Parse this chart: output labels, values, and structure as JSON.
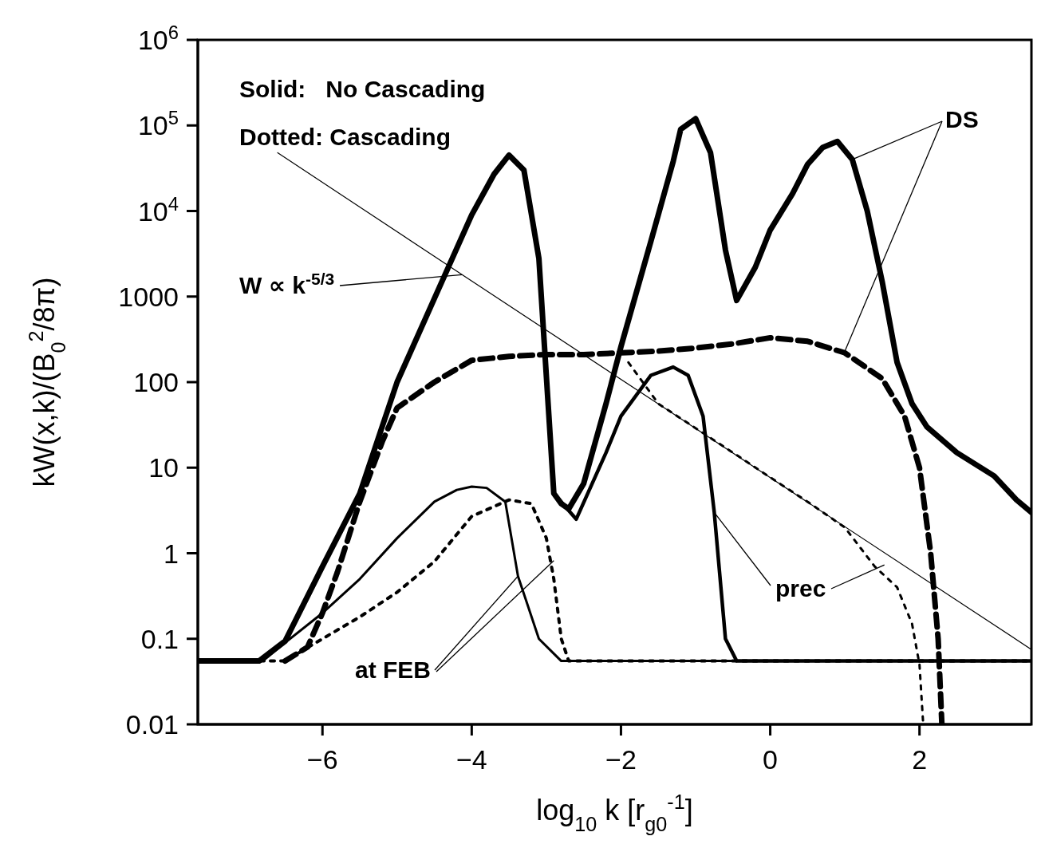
{
  "chart_data": {
    "type": "line",
    "xlabel": "log$_{10}$ k [r$_{g0}$$^{-1}$]",
    "ylabel": "kW(x,k)/(B$_{0}$$^{2}$/8π)",
    "log": "y",
    "xlim": [
      -7.67,
      3.5
    ],
    "xticks": [
      -6,
      -4,
      -2,
      0,
      2
    ],
    "ylim": [
      0.01,
      1000000
    ],
    "yticks": [
      0.01,
      0.1,
      1,
      10,
      100,
      1000,
      {
        "value": 10000,
        "label": "10$^{4}$"
      },
      {
        "value": 100000,
        "label": "10$^{5}$"
      },
      {
        "value": 1000000,
        "label": "10$^{6}$"
      }
    ],
    "series": [
      {
        "color": "#000000",
        "line_style": "solid",
        "x": [
          -7.67,
          -6.85,
          -6.5,
          -6,
          -5.5,
          -5,
          -4.5,
          -4,
          -3.7,
          -3.5,
          -3.3,
          -3.1,
          -2.9,
          -2.8,
          -2.7,
          -2.5,
          -2.2,
          -2,
          -1.6,
          -1.3,
          -1.2,
          -1,
          -0.8,
          -0.6,
          -0.45,
          -0.2,
          0,
          0.3,
          0.5,
          0.7,
          0.9,
          1.1,
          1.3,
          1.5,
          1.7,
          1.9,
          2.1,
          2.5,
          3,
          3.3,
          3.5
        ],
        "values": [
          0.055,
          0.055,
          0.094,
          0.7,
          5,
          100,
          950,
          9000,
          27000,
          45000,
          30000,
          2800,
          5,
          3.8,
          3.3,
          6.5,
          56,
          260,
          4400,
          38000,
          90000,
          120000,
          48000,
          3500,
          900,
          2200,
          6000,
          16000,
          35000,
          55000,
          65000,
          40000,
          10000,
          1500,
          170,
          56,
          30,
          15,
          8,
          4.2,
          3
        ]
      },
      {
        "color": "#000000",
        "line_style": "dashed",
        "x": [
          -6.5,
          -6.2,
          -6,
          -5.8,
          -5.5,
          -5.2,
          -5,
          -4.5,
          -4,
          -3.5,
          -3,
          -2.5,
          -2,
          -1.5,
          -1,
          -0.5,
          0,
          0.5,
          1,
          1.5,
          1.8,
          2,
          2.15,
          2.25,
          2.3
        ],
        "values": [
          0.055,
          0.08,
          0.2,
          0.6,
          4,
          20,
          50,
          100,
          180,
          200,
          210,
          210,
          220,
          230,
          250,
          280,
          330,
          300,
          220,
          110,
          40,
          10,
          1,
          0.1,
          0.01
        ]
      },
      {
        "color": "#000000",
        "line_style": "solid",
        "x": [
          -2.9,
          -2.6,
          -2.2,
          -2,
          -1.6,
          -1.3,
          -1.1,
          -0.9,
          -0.75,
          -0.6,
          -0.45,
          3.5
        ],
        "values": [
          5,
          2.5,
          15,
          40,
          120,
          150,
          120,
          40,
          3,
          0.1,
          0.055,
          0.055
        ]
      },
      {
        "color": "#000000",
        "line_style": "solid",
        "x": [
          -7.67,
          -6.8,
          -6.5,
          -6,
          -5.5,
          -5,
          -4.5,
          -4.2,
          -4,
          -3.8,
          -3.55,
          -3.38,
          -3.1,
          -2.8,
          3.5
        ],
        "values": [
          0.055,
          0.055,
          0.09,
          0.2,
          0.5,
          1.5,
          4,
          5.5,
          6,
          5.8,
          4,
          0.54,
          0.1,
          0.055,
          0.055
        ]
      },
      {
        "color": "#000000",
        "line_style": "dotted",
        "x": [
          -7.67,
          -6.5,
          -6,
          -5.5,
          -5,
          -4.5,
          -4,
          -3.5,
          -3.2,
          -3,
          -2.9,
          -2.8,
          -2.7,
          3.5
        ],
        "values": [
          0.055,
          0.055,
          0.1,
          0.18,
          0.35,
          0.8,
          2.7,
          4.2,
          3.8,
          1.5,
          0.5,
          0.1,
          0.055,
          0.055
        ]
      },
      {
        "color": "#000000",
        "line_style": "dotted",
        "x": [
          -1.9,
          -1.5,
          -1,
          -0.5,
          0,
          0.5,
          1,
          1.4,
          1.7,
          1.9,
          2,
          2.05
        ],
        "values": [
          170,
          56,
          29,
          15,
          7.7,
          4,
          2,
          0.7,
          0.4,
          0.15,
          0.05,
          0.01
        ]
      },
      {
        "color": "#000000",
        "line_style": "solid",
        "x": [
          -6.6,
          -4.13,
          3.5
        ],
        "values": [
          48000,
          1800,
          0.075
        ]
      }
    ],
    "annotations": [
      "Solid:   No Cascading",
      "Dotted: Cascading",
      {
        "text": "DS",
        "x": 1.1,
        "y": 40000
      },
      {
        "text": "W ∝ k$^{-5/3}$",
        "x": -4.13,
        "y": 1800
      },
      {
        "text": "prec",
        "x": -0.75,
        "y": 3
      },
      {
        "text": "at FEB",
        "x": -3.38,
        "y": 0.54
      }
    ]
  }
}
